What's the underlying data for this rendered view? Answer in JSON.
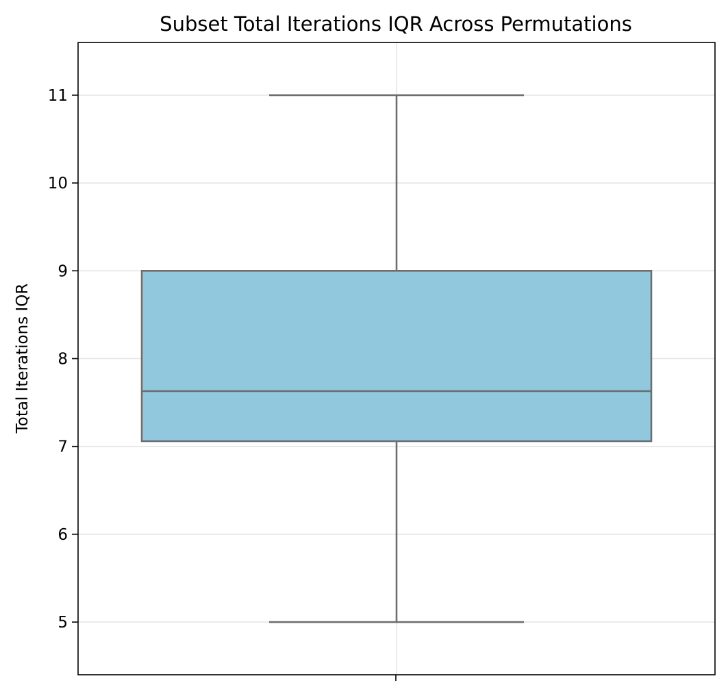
{
  "chart_data": {
    "type": "box",
    "title": "Subset Total Iterations IQR Across Permutations",
    "xlabel": "",
    "ylabel": "Total Iterations IQR",
    "ylim": [
      4.4,
      11.6
    ],
    "yticks": [
      5,
      6,
      7,
      8,
      9,
      10,
      11
    ],
    "ytick_labels": [
      "5",
      "6",
      "7",
      "8",
      "9",
      "10",
      "11"
    ],
    "grid": true,
    "series": [
      {
        "whisker_low": 5,
        "q1": 7.06,
        "median": 7.63,
        "q3": 9,
        "whisker_high": 11
      }
    ],
    "colors": {
      "box_fill": "#92c8de",
      "box_edge": "#6e6e6e",
      "grid": "#e5e5e5",
      "axis": "#000000"
    }
  }
}
